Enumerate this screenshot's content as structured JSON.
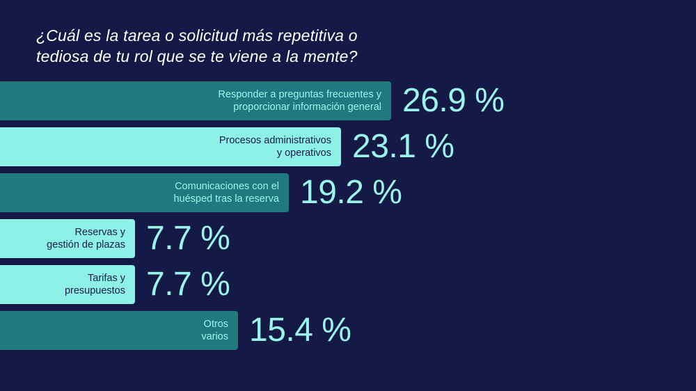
{
  "title": "¿Cuál es la tarea o solicitud más repetitiva o\ntediosa de tu rol que se te viene a la mente?",
  "colors": {
    "background": "#141a45",
    "dark_bar": "#1f7a80",
    "light_bar": "#8ef1e7",
    "dark_bar_text": "#9af4ea",
    "light_bar_text": "#141a45",
    "value_text": "#9af4ea",
    "title_text": "#ffffff"
  },
  "chart_data": {
    "type": "bar",
    "orientation": "horizontal",
    "title": "¿Cuál es la tarea o solicitud más repetitiva o tediosa de tu rol que se te viene a la mente?",
    "categories": [
      "Responder a preguntas frecuentes y\nproporcionar información general",
      "Procesos administrativos\ny operativos",
      "Comunicaciones con el\nhuésped tras la reserva",
      "Reservas y\ngestión de plazas",
      "Tarifas y\npresupuestos",
      "Otros\nvarios"
    ],
    "values": [
      26.9,
      23.1,
      19.2,
      7.7,
      7.7,
      15.4
    ],
    "value_labels": [
      "26.9 %",
      "23.1 %",
      "19.2 %",
      "7.7 %",
      "7.7 %",
      "15.4 %"
    ],
    "bar_styles": [
      "dark",
      "light",
      "dark",
      "light",
      "light",
      "dark"
    ],
    "unit": "%",
    "grid": false,
    "legend": "none",
    "xlabel": "",
    "ylabel": ""
  }
}
